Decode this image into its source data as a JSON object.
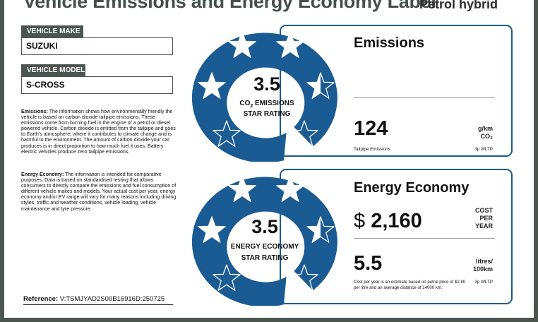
{
  "label": {
    "title": "Vehicle Emissions and Energy Economy Label",
    "fuel_type": "Petrol hybrid"
  },
  "vehicle": {
    "make_label": "VEHICLE MAKE",
    "make": "SUZUKI",
    "model_label": "VEHICLE MODEL",
    "model": "S-CROSS"
  },
  "info": {
    "emissions_heading": "Emissions:",
    "emissions_text": "The information shows how environmentally friendly the vehicle is based on carbon dioxide tailpipe emissions. These emissions come from burning fuel in the engine of a petrol or diesel powered vehicle. Carbon dioxide is emitted from the tailpipe and goes to Earth's atmosphere, where it contributes to climate change and is harmful to the environment. The amount of carbon dioxide your car produces is in direct proportion to how much fuel it uses. Battery electric vehicles produce zero tailpipe emissions.",
    "economy_heading": "Energy Economy:",
    "economy_text": "The information is intended for comparative purposes. Data is based on standardised testing that allows consumers to directly compare the emissions and fuel consumption of different vehicle makes and models. Your actual cost per year, energy economy and/or EV range will vary for many reasons including driving styles, traffic and weather conditions, vehicle loading, vehicle maintenance and tyre pressure.",
    "reference_label": "Reference:",
    "reference": "V:TSMJYAD2S00B16916D:250725"
  },
  "emissions": {
    "stars": 3.5,
    "stars_text": "3.5",
    "rating_line1_prefix": "CO",
    "rating_line1_sub": "2",
    "rating_line1_suffix": " EMISSIONS",
    "rating_line2": "STAR RATING",
    "panel_title": "Emissions",
    "value": "124",
    "unit_line1": "g/km",
    "unit_line2": "CO₂",
    "footer_left": "Tailpipe Emissions",
    "footer_right": "3p WLTP"
  },
  "economy": {
    "stars": 3.5,
    "stars_text": "3.5",
    "rating_line1": "ENERGY ECONOMY",
    "rating_line2": "STAR RATING",
    "panel_title": "Energy Economy",
    "cost_symbol": "$",
    "cost": "2,160",
    "cost_unit_line1": "COST",
    "cost_unit_line2": "PER",
    "cost_unit_line3": "YEAR",
    "consumption": "5.5",
    "consumption_unit_line1": "litres/",
    "consumption_unit_line2": "100km",
    "footnote": "Cost per year is an estimate based on petrol price of  $2.80 per litre and an average distance of 14000 km.",
    "footer_right": "3p WLTP"
  },
  "colors": {
    "star_blue": "#1a5b93",
    "frame_gray": "#4b5651"
  }
}
